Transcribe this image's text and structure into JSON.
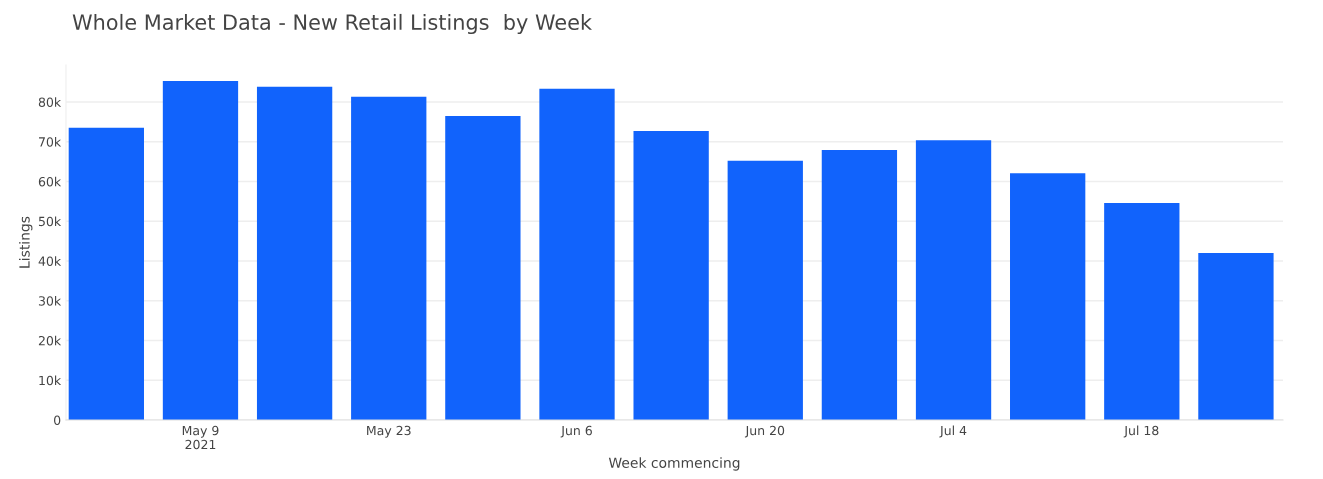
{
  "chart_data": {
    "type": "bar",
    "title": "Whole Market Data - New Retail Listings  by Week",
    "xlabel": "Week commencing",
    "ylabel": "Listings",
    "x": [
      "2021-05-02",
      "2021-05-09",
      "2021-05-16",
      "2021-05-23",
      "2021-05-30",
      "2021-06-06",
      "2021-06-13",
      "2021-06-20",
      "2021-06-27",
      "2021-07-04",
      "2021-07-11",
      "2021-07-18",
      "2021-07-25"
    ],
    "values": [
      73500,
      85300,
      83800,
      81300,
      76500,
      83300,
      72700,
      65200,
      67900,
      70400,
      62100,
      54600,
      42000
    ],
    "color": "#1163fc",
    "xlim": [
      "2021-04-29",
      "2021-07-28T12:00"
    ],
    "xticks": [
      {
        "value": "2021-05-09",
        "label": "May 9\n2021"
      },
      {
        "value": "2021-05-23",
        "label": "May 23"
      },
      {
        "value": "2021-06-06",
        "label": "Jun 6"
      },
      {
        "value": "2021-06-20",
        "label": "Jun 20"
      },
      {
        "value": "2021-07-04",
        "label": "Jul 4"
      },
      {
        "value": "2021-07-18",
        "label": "Jul 18"
      }
    ],
    "ylim": [
      0,
      89300
    ],
    "yticks": [
      0,
      {
        "value": 10000,
        "label": "10k"
      },
      {
        "value": 20000,
        "label": "20k"
      },
      {
        "value": 30000,
        "label": "30k"
      },
      {
        "value": 40000,
        "label": "40k"
      },
      {
        "value": 50000,
        "label": "50k"
      },
      {
        "value": 60000,
        "label": "60k"
      },
      {
        "value": 70000,
        "label": "70k"
      },
      {
        "value": 80000,
        "label": "80k"
      }
    ],
    "grid": "y"
  }
}
